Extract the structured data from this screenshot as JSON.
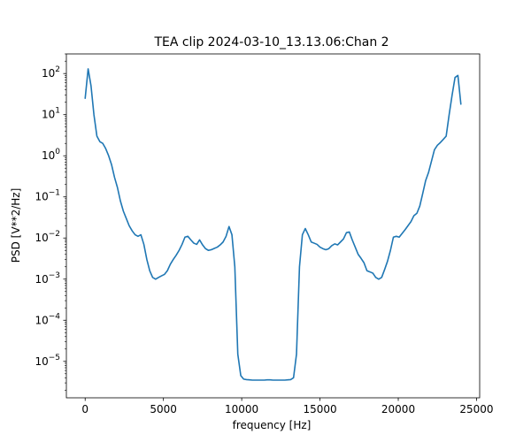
{
  "chart_data": {
    "type": "line",
    "title": "TEA clip 2024-03-10_13.13.06:Chan 2",
    "xlabel": "frequency [Hz]",
    "ylabel": "PSD [V**2/Hz]",
    "xlim": [
      -1200,
      25200
    ],
    "ylim": [
      1.3e-06,
      300
    ],
    "yscale": "log",
    "grid": false,
    "line_color": "#1f77b4",
    "x_ticks": [
      {
        "value": 0,
        "label": "0"
      },
      {
        "value": 5000,
        "label": "5000"
      },
      {
        "value": 10000,
        "label": "10000"
      },
      {
        "value": 15000,
        "label": "15000"
      },
      {
        "value": 20000,
        "label": "20000"
      },
      {
        "value": 25000,
        "label": "25000"
      }
    ],
    "y_ticks": [
      {
        "value": 1e-05,
        "base": "10",
        "exp": "−5"
      },
      {
        "value": 0.0001,
        "base": "10",
        "exp": "−4"
      },
      {
        "value": 0.001,
        "base": "10",
        "exp": "−3"
      },
      {
        "value": 0.01,
        "base": "10",
        "exp": "−2"
      },
      {
        "value": 0.1,
        "base": "10",
        "exp": "−1"
      },
      {
        "value": 1,
        "base": "10",
        "exp": "0"
      },
      {
        "value": 10,
        "base": "10",
        "exp": "1"
      },
      {
        "value": 100,
        "base": "10",
        "exp": "2"
      }
    ],
    "series": [
      {
        "x": [
          0,
          190,
          375,
          560,
          750,
          940,
          1125,
          1310,
          1500,
          1690,
          1875,
          2060,
          2250,
          2440,
          2625,
          2810,
          3000,
          3190,
          3375,
          3560,
          3750,
          3940,
          4125,
          4310,
          4500,
          4690,
          4875,
          5060,
          5250,
          5440,
          5625,
          5810,
          6000,
          6190,
          6375,
          6560,
          6750,
          6940,
          7125,
          7310,
          7500,
          7690,
          7875,
          8060,
          8250,
          8440,
          8625,
          8810,
          9000,
          9190,
          9375,
          9560,
          9750,
          9940,
          10125,
          10310,
          10500,
          10690,
          10875,
          11060,
          11250,
          11440,
          11625,
          11810,
          12000,
          12190,
          12375,
          12560,
          12750,
          12940,
          13125,
          13310,
          13500,
          13690,
          13875,
          14060,
          14250,
          14440,
          14625,
          14810,
          15000,
          15190,
          15375,
          15560,
          15750,
          15940,
          16125,
          16310,
          16500,
          16690,
          16875,
          17060,
          17250,
          17440,
          17625,
          17810,
          18000,
          18190,
          18375,
          18560,
          18750,
          18940,
          19125,
          19310,
          19500,
          19690,
          19875,
          20060,
          20250,
          20440,
          20625,
          20810,
          21000,
          21190,
          21375,
          21560,
          21750,
          21940,
          22125,
          22310,
          22500,
          22690,
          22875,
          23060,
          23250,
          23440,
          23625,
          23810,
          24000
        ],
        "y": [
          25,
          130,
          50,
          10,
          3,
          2.2,
          2,
          1.5,
          1,
          0.6,
          0.3,
          0.17,
          0.08,
          0.045,
          0.03,
          0.02,
          0.015,
          0.012,
          0.011,
          0.012,
          0.007,
          0.003,
          0.0016,
          0.0011,
          0.001,
          0.0011,
          0.0012,
          0.0013,
          0.0016,
          0.0023,
          0.003,
          0.0038,
          0.005,
          0.007,
          0.0105,
          0.011,
          0.009,
          0.0075,
          0.007,
          0.009,
          0.0068,
          0.0055,
          0.005,
          0.0052,
          0.0056,
          0.006,
          0.0068,
          0.008,
          0.011,
          0.019,
          0.012,
          0.002,
          1.5e-05,
          4.5e-06,
          3.7e-06,
          3.6e-06,
          3.55e-06,
          3.5e-06,
          3.5e-06,
          3.5e-06,
          3.5e-06,
          3.5e-06,
          3.55e-06,
          3.55e-06,
          3.5e-06,
          3.5e-06,
          3.5e-06,
          3.5e-06,
          3.5e-06,
          3.55e-06,
          3.6e-06,
          4e-06,
          1.5e-05,
          0.002,
          0.012,
          0.017,
          0.012,
          0.008,
          0.0075,
          0.007,
          0.006,
          0.0055,
          0.0052,
          0.0055,
          0.0065,
          0.0072,
          0.0068,
          0.008,
          0.0095,
          0.0135,
          0.014,
          0.009,
          0.006,
          0.004,
          0.0032,
          0.0025,
          0.0016,
          0.0015,
          0.0014,
          0.0011,
          0.001,
          0.0011,
          0.0017,
          0.0027,
          0.005,
          0.0105,
          0.011,
          0.0105,
          0.013,
          0.016,
          0.02,
          0.025,
          0.035,
          0.04,
          0.06,
          0.12,
          0.25,
          0.4,
          0.75,
          1.4,
          1.8,
          2.1,
          2.5,
          3,
          10,
          30,
          80,
          90,
          18
        ]
      }
    ]
  }
}
